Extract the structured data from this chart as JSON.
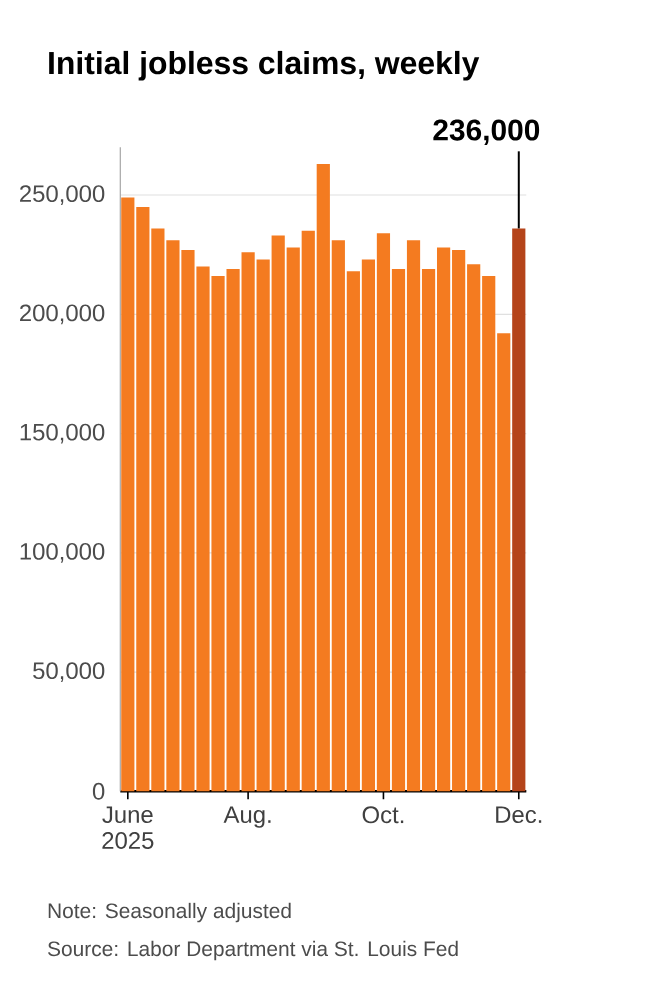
{
  "chart_data": {
    "type": "bar",
    "title": "Initial jobless claims, weekly",
    "categories": [
      "June 2025",
      null,
      null,
      null,
      null,
      null,
      null,
      null,
      "Aug.",
      null,
      null,
      null,
      null,
      null,
      null,
      null,
      null,
      "Oct.",
      null,
      null,
      null,
      null,
      null,
      null,
      null,
      null,
      "Dec."
    ],
    "values": [
      249000,
      245000,
      236000,
      231000,
      227000,
      220000,
      216000,
      219000,
      226000,
      223000,
      233000,
      228000,
      235000,
      263000,
      231000,
      218000,
      223000,
      234000,
      219000,
      231000,
      219000,
      228000,
      227000,
      221000,
      216000,
      192000,
      236000
    ],
    "colors": [
      "#f47b20",
      "#f47b20",
      "#f47b20",
      "#f47b20",
      "#f47b20",
      "#f47b20",
      "#f47b20",
      "#f47b20",
      "#f47b20",
      "#f47b20",
      "#f47b20",
      "#f47b20",
      "#f47b20",
      "#f47b20",
      "#f47b20",
      "#f47b20",
      "#f47b20",
      "#f47b20",
      "#f47b20",
      "#f47b20",
      "#f47b20",
      "#f47b20",
      "#f47b20",
      "#f47b20",
      "#f47b20",
      "#f47b20",
      "#b5441a"
    ],
    "value_labels": [
      null,
      null,
      null,
      null,
      null,
      null,
      null,
      null,
      null,
      null,
      null,
      null,
      null,
      null,
      null,
      null,
      null,
      null,
      null,
      null,
      null,
      null,
      null,
      null,
      null,
      null,
      "236,000"
    ],
    "ylim": [
      0,
      270000
    ],
    "yticks": [
      {
        "value": 0,
        "label": "0"
      },
      {
        "value": 50000,
        "label": "50,000"
      },
      {
        "value": 100000,
        "label": "100,000"
      },
      {
        "value": 150000,
        "label": "150,000"
      },
      {
        "value": 200000,
        "label": "200,000"
      },
      {
        "value": 250000,
        "label": "250,000"
      }
    ],
    "grid": "y",
    "annotations": [
      "Note: Seasonally adjusted",
      "Source: Labor Department via St. Louis Fed"
    ]
  }
}
